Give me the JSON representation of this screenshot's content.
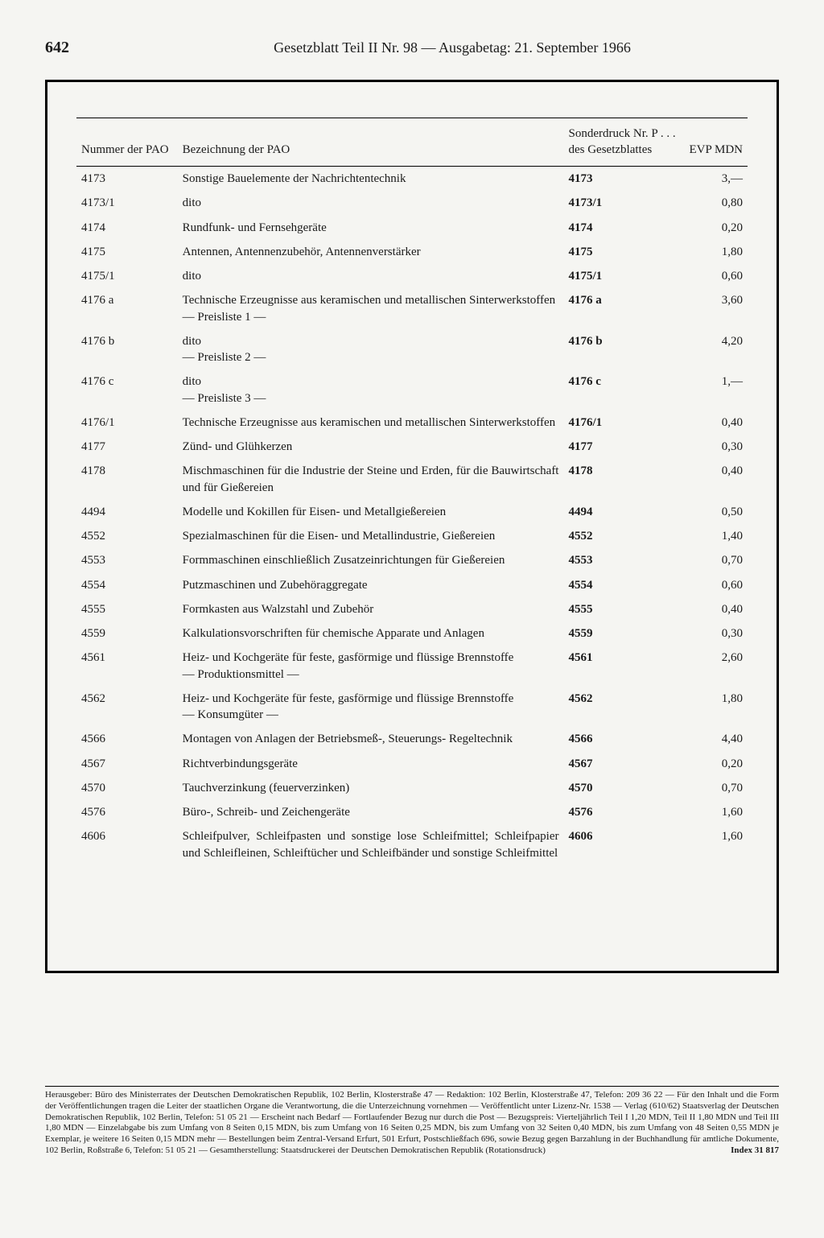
{
  "page_number": "642",
  "header_title": "Gesetzblatt Teil II Nr. 98 — Ausgabetag: 21. September 1966",
  "table": {
    "columns": {
      "num": "Nummer\nder\nPAO",
      "desc": "Bezeichnung der PAO",
      "sd": "Sonderdruck\nNr. P . . . des\nGesetzblattes",
      "evp": "EVP\nMDN"
    },
    "rows": [
      {
        "num": "4173",
        "desc": "Sonstige Bauelemente der Nachrichtentechnik",
        "sd": "4173",
        "evp": "3,—"
      },
      {
        "num": "4173/1",
        "desc": "dito",
        "sd": "4173/1",
        "evp": "0,80"
      },
      {
        "num": "4174",
        "desc": "Rundfunk- und Fernsehgeräte",
        "sd": "4174",
        "evp": "0,20"
      },
      {
        "num": "4175",
        "desc": "Antennen, Antennenzubehör, Antennenverstärker",
        "sd": "4175",
        "evp": "1,80"
      },
      {
        "num": "4175/1",
        "desc": "dito",
        "sd": "4175/1",
        "evp": "0,60"
      },
      {
        "num": "4176 a",
        "desc": "Technische Erzeugnisse aus keramischen und metallischen Sinterwerkstoffen\n— Preisliste 1 —",
        "sd": "4176 a",
        "evp": "3,60"
      },
      {
        "num": "4176 b",
        "desc": "dito\n— Preisliste 2 —",
        "sd": "4176 b",
        "evp": "4,20"
      },
      {
        "num": "4176 c",
        "desc": "dito\n— Preisliste 3 —",
        "sd": "4176 c",
        "evp": "1,—"
      },
      {
        "num": "4176/1",
        "desc": "Technische Erzeugnisse aus keramischen und metallischen Sinterwerkstoffen",
        "sd": "4176/1",
        "evp": "0,40"
      },
      {
        "num": "4177",
        "desc": "Zünd- und Glühkerzen",
        "sd": "4177",
        "evp": "0,30"
      },
      {
        "num": "4178",
        "desc": "Mischmaschinen für die Industrie der Steine und Erden, für die Bauwirtschaft und für Gießereien",
        "sd": "4178",
        "evp": "0,40"
      },
      {
        "num": "4494",
        "desc": "Modelle und Kokillen für Eisen- und Metallgießereien",
        "sd": "4494",
        "evp": "0,50"
      },
      {
        "num": "4552",
        "desc": "Spezialmaschinen für die Eisen- und Metallindustrie, Gießereien",
        "sd": "4552",
        "evp": "1,40"
      },
      {
        "num": "4553",
        "desc": "Formmaschinen einschließlich Zusatzeinrichtungen für Gießereien",
        "sd": "4553",
        "evp": "0,70"
      },
      {
        "num": "4554",
        "desc": "Putzmaschinen und Zubehöraggregate",
        "sd": "4554",
        "evp": "0,60"
      },
      {
        "num": "4555",
        "desc": "Formkasten aus Walzstahl und Zubehör",
        "sd": "4555",
        "evp": "0,40"
      },
      {
        "num": "4559",
        "desc": "Kalkulationsvorschriften für chemische Apparate und Anlagen",
        "sd": "4559",
        "evp": "0,30"
      },
      {
        "num": "4561",
        "desc": "Heiz- und Kochgeräte für feste, gasförmige und flüssige Brennstoffe\n— Produktionsmittel —",
        "sd": "4561",
        "evp": "2,60"
      },
      {
        "num": "4562",
        "desc": "Heiz- und Kochgeräte für feste, gasförmige und flüssige Brennstoffe\n— Konsumgüter —",
        "sd": "4562",
        "evp": "1,80"
      },
      {
        "num": "4566",
        "desc": "Montagen von Anlagen der Betriebsmeß-, Steuerungs- Regeltechnik",
        "sd": "4566",
        "evp": "4,40"
      },
      {
        "num": "4567",
        "desc": "Richtverbindungsgeräte",
        "sd": "4567",
        "evp": "0,20"
      },
      {
        "num": "4570",
        "desc": "Tauchverzinkung (feuerverzinken)",
        "sd": "4570",
        "evp": "0,70"
      },
      {
        "num": "4576",
        "desc": "Büro-, Schreib- und Zeichengeräte",
        "sd": "4576",
        "evp": "1,60"
      },
      {
        "num": "4606",
        "desc": "Schleifpulver, Schleifpasten und sonstige lose Schleifmittel; Schleifpapier und Schleifleinen, Schleiftücher und Schleifbänder und sonstige Schleifmittel",
        "sd": "4606",
        "evp": "1,60"
      }
    ]
  },
  "imprint": {
    "text": "Herausgeber: Büro des Ministerrates der Deutschen Demokratischen Republik, 102 Berlin, Klosterstraße 47 — Redaktion: 102 Berlin, Klosterstraße 47, Telefon: 209 36 22 — Für den Inhalt und die Form der Veröffentlichungen tragen die Leiter der staatlichen Organe die Verantwortung, die die Unterzeichnung vornehmen — Veröffentlicht unter Lizenz-Nr. 1538 — Verlag (610/62) Staatsverlag der Deutschen Demokratischen Republik, 102 Berlin, Telefon: 51 05 21 — Erscheint nach Bedarf — Fortlaufender Bezug nur durch die Post — Bezugspreis: Vierteljährlich Teil I 1,20 MDN, Teil II 1,80 MDN und Teil III 1,80 MDN — Einzelabgabe bis zum Umfang von 8 Seiten 0,15 MDN, bis zum Umfang von 16 Seiten 0,25 MDN, bis zum Umfang von 32 Seiten 0,40 MDN, bis zum Umfang von 48 Seiten 0,55 MDN je Exemplar, je weitere 16 Seiten 0,15 MDN mehr — Bestellungen beim Zentral-Versand Erfurt, 501 Erfurt, Postschließfach 696, sowie Bezug gegen Barzahlung in der Buchhandlung für amtliche Dokumente, 102 Berlin, Roßstraße 6, Telefon: 51 05 21 — Gesamtherstellung: Staatsdruckerei der Deutschen Demokratischen Republik (Rotationsdruck)",
    "index": "Index 31 817"
  },
  "style": {
    "background_color": "#f5f5f2",
    "text_color": "#1a1a1a",
    "border_color": "#000000",
    "frame_border_width": 3,
    "body_fontsize": 15,
    "header_fontsize": 18,
    "pagenum_fontsize": 20,
    "imprint_fontsize": 11
  }
}
